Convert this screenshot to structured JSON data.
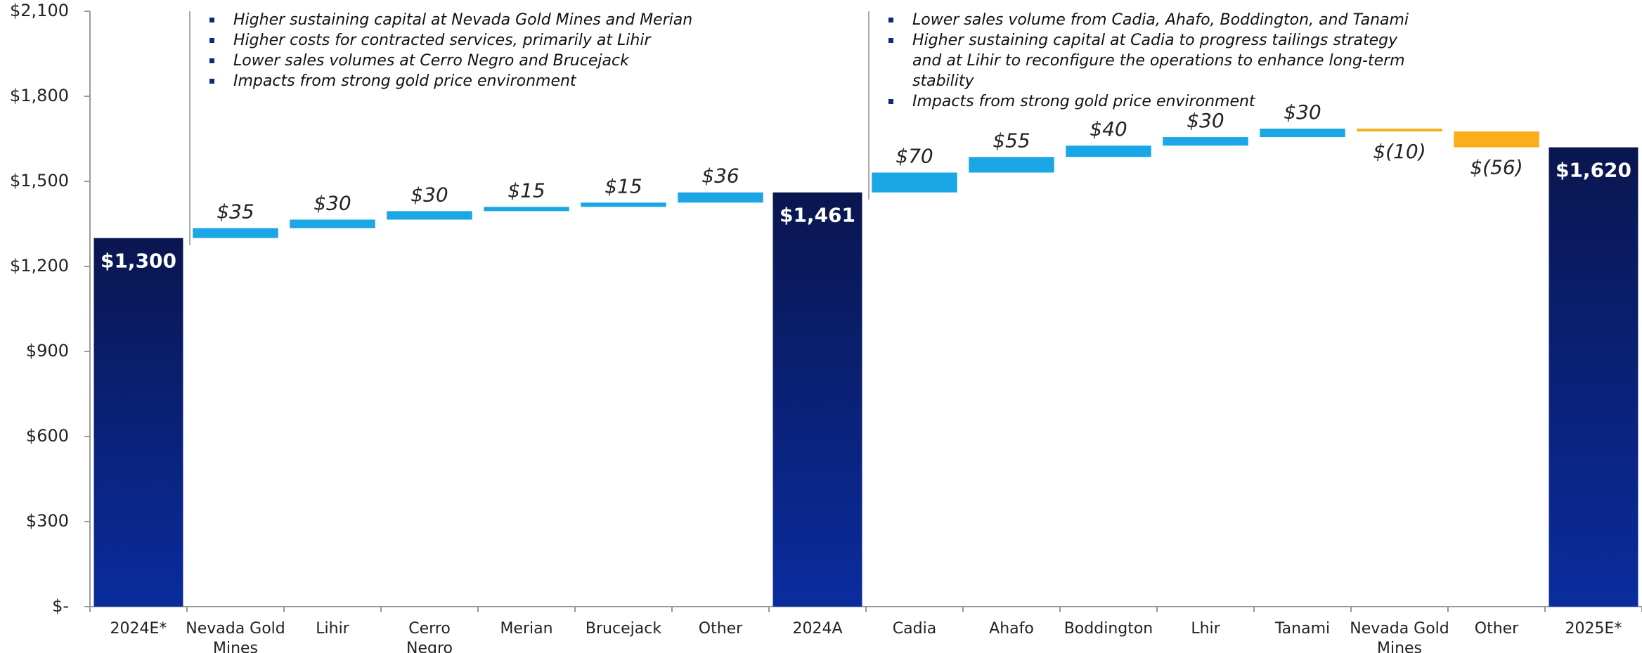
{
  "chart_data": {
    "type": "waterfall",
    "categories": [
      "2024E*",
      "Nevada Gold Mines",
      "Lihir",
      "Cerro Negro",
      "Merian",
      "Brucejack",
      "Other",
      "2024A",
      "Cadia",
      "Ahafo",
      "Boddington",
      "Lhir",
      "Tanami",
      "Nevada Gold Mines",
      "Other",
      "2025E*"
    ],
    "values": [
      1300,
      35,
      30,
      30,
      15,
      15,
      36,
      1461,
      70,
      55,
      40,
      30,
      30,
      -10,
      -56,
      1620
    ],
    "value_labels": [
      "$1,300",
      "$35",
      "$30",
      "$30",
      "$15",
      "$15",
      "$36",
      "$1,461",
      "$70",
      "$55",
      "$40",
      "$30",
      "$30",
      "$(10)",
      "$(56)",
      "$1,620"
    ],
    "measures": [
      "total",
      "relative",
      "relative",
      "relative",
      "relative",
      "relative",
      "relative",
      "total",
      "relative",
      "relative",
      "relative",
      "relative",
      "relative",
      "relative",
      "relative",
      "total"
    ],
    "colors": {
      "total": "#0b1d6b",
      "increase": "#1ba6e6",
      "decrease": "#f9ae1e"
    },
    "ylim": [
      0,
      2100
    ],
    "yticks": [
      {
        "value": 0,
        "label": "$-"
      },
      {
        "value": 300,
        "label": "$300"
      },
      {
        "value": 600,
        "label": "$600"
      },
      {
        "value": 900,
        "label": "$900"
      },
      {
        "value": 1200,
        "label": "$1,200"
      },
      {
        "value": 1500,
        "label": "$1,500"
      },
      {
        "value": 1800,
        "label": "$1,800"
      },
      {
        "value": 2100,
        "label": "$2,100"
      }
    ],
    "annotations": [
      {
        "bullets": [
          "Higher sustaining capital at Nevada Gold Mines and Merian",
          "Higher costs for contracted services, primarily at Lihir",
          "Lower sales volumes at Cerro Negro and Brucejack",
          "Impacts from strong gold price environment"
        ]
      },
      {
        "bullets": [
          "Lower sales volume from Cadia, Ahafo, Boddington, and Tanami",
          "Higher sustaining capital at Cadia to progress tailings strategy and at Lihir to reconfigure the operations to enhance long-term stability",
          "Impacts from strong gold price environment"
        ]
      }
    ]
  }
}
